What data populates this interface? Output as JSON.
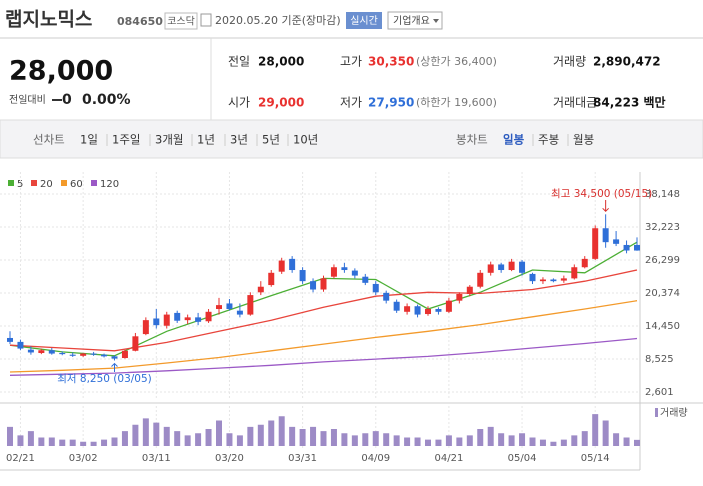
{
  "header": {
    "name": "랩지노믹스",
    "code": "084650",
    "market": "코스닥",
    "date": "2020.05.20 기준(장마감)",
    "realtime": "실시간",
    "company": "기업개요"
  },
  "price": {
    "current": "28,000",
    "change_label": "전일대비",
    "change": "0",
    "change_pct": "0.00%"
  },
  "summary": {
    "prev_label": "전일",
    "prev": "28,000",
    "high_label": "고가",
    "high": "30,350",
    "upper_limit": "(상한가 36,400)",
    "volume_label": "거래량",
    "volume": "2,890,472",
    "open_label": "시가",
    "open": "29,000",
    "low_label": "저가",
    "low": "27,950",
    "lower_limit": "(하한가 19,600)",
    "amount_label": "거래대금",
    "amount": "84,223 백만"
  },
  "tabs": {
    "line_label": "선차트",
    "line": [
      "1일",
      "1주일",
      "3개월",
      "1년",
      "3년",
      "5년",
      "10년"
    ],
    "candle_label": "봉차트",
    "candle": [
      "일봉",
      "주봉",
      "월봉"
    ]
  },
  "chart_data": {
    "type": "candlestick",
    "categories": [
      null,
      "02/21",
      null,
      null,
      null,
      null,
      null,
      "03/02",
      null,
      null,
      null,
      null,
      null,
      null,
      "03/11",
      null,
      null,
      null,
      null,
      null,
      null,
      "03/20",
      null,
      null,
      null,
      null,
      null,
      null,
      "03/31",
      null,
      null,
      null,
      null,
      null,
      null,
      "04/09",
      null,
      null,
      null,
      null,
      null,
      null,
      "04/21",
      null,
      null,
      null,
      null,
      null,
      null,
      "05/04",
      null,
      null,
      null,
      null,
      null,
      null,
      "05/14",
      null,
      null,
      null,
      null
    ],
    "open": [
      12300,
      11600,
      10200,
      9600,
      10100,
      9600,
      9300,
      9100,
      9500,
      9300,
      9000,
      8700,
      10000,
      13000,
      15800,
      14500,
      16800,
      15500,
      16000,
      15300,
      17500,
      18500,
      17200,
      16500,
      20500,
      21800,
      24200,
      26500,
      24500,
      22500,
      21000,
      23300,
      25000,
      24400,
      23300,
      22000,
      20400,
      18800,
      17000,
      18000,
      16600,
      17500,
      17000,
      19000,
      20200,
      21500,
      24000,
      25500,
      24500,
      26000,
      23800,
      22500,
      22800,
      22600,
      23000,
      25000,
      26500,
      32000,
      30000,
      29000,
      29000
    ],
    "high": [
      13500,
      12000,
      10800,
      10400,
      10500,
      9900,
      9700,
      9600,
      9800,
      9500,
      9200,
      10200,
      13200,
      16000,
      17500,
      17000,
      17200,
      16500,
      16800,
      17500,
      19500,
      19300,
      18500,
      20500,
      22500,
      24500,
      26700,
      27000,
      25000,
      23000,
      23500,
      25500,
      25800,
      24800,
      23800,
      22500,
      20800,
      19200,
      18500,
      18300,
      18000,
      17800,
      19500,
      20500,
      21800,
      24500,
      26000,
      25800,
      26500,
      26300,
      24000,
      23200,
      23000,
      23500,
      25500,
      27000,
      32500,
      34500,
      31500,
      29800,
      30350
    ],
    "low": [
      11200,
      10100,
      9300,
      9400,
      9300,
      9200,
      8900,
      8900,
      9100,
      8800,
      8250,
      8600,
      9900,
      12800,
      14000,
      14000,
      15000,
      14800,
      14600,
      15000,
      16500,
      17200,
      16000,
      16300,
      20000,
      21500,
      23800,
      24000,
      22000,
      20500,
      20600,
      23000,
      24000,
      23000,
      21800,
      20000,
      18500,
      16800,
      16500,
      16000,
      16300,
      16500,
      16800,
      18500,
      19800,
      21200,
      23500,
      24000,
      24300,
      23500,
      22000,
      22000,
      22300,
      22200,
      22800,
      24800,
      26300,
      28500,
      28800,
      27500,
      27950
    ],
    "close": [
      11600,
      10400,
      9700,
      10100,
      9500,
      9400,
      9100,
      9500,
      9300,
      9000,
      8600,
      10000,
      12600,
      15500,
      14600,
      16500,
      15400,
      16000,
      15200,
      17000,
      18200,
      17500,
      16500,
      20000,
      21500,
      24000,
      26200,
      24500,
      22500,
      21000,
      23000,
      25000,
      24500,
      23500,
      22200,
      20500,
      19000,
      17200,
      18000,
      16500,
      17500,
      17000,
      19000,
      20200,
      21500,
      24000,
      25500,
      24500,
      26000,
      24000,
      22500,
      22800,
      22500,
      23000,
      25000,
      26500,
      32000,
      29500,
      29200,
      28000,
      28000
    ],
    "volume": [
      9000000,
      5000000,
      7000000,
      4000000,
      4000000,
      3000000,
      3000000,
      2000000,
      2000000,
      3000000,
      4000000,
      7000000,
      10000000,
      13000000,
      11000000,
      9000000,
      7000000,
      5000000,
      6000000,
      8000000,
      12000000,
      6000000,
      5000000,
      9000000,
      10000000,
      12000000,
      14000000,
      9000000,
      8000000,
      9000000,
      7000000,
      8000000,
      6000000,
      5000000,
      6000000,
      7000000,
      6000000,
      5000000,
      4000000,
      4000000,
      3000000,
      3000000,
      5000000,
      4000000,
      5000000,
      8000000,
      9000000,
      6000000,
      5000000,
      6000000,
      4000000,
      3000000,
      2000000,
      3000000,
      5000000,
      7000000,
      15000000,
      12000000,
      6000000,
      4000000,
      2890472
    ],
    "up_color": "#e8312f",
    "down_color": "#2f6fd8",
    "volume_color": "#9d8bc6",
    "volume_name": "거래량",
    "volume_ylim": [
      0,
      16000000
    ],
    "series": [
      {
        "name": "5",
        "color": "#4caf35",
        "x": [
          0,
          5,
          10,
          15,
          20,
          25,
          30,
          35,
          40,
          45,
          50,
          55,
          60
        ],
        "values": [
          11000,
          9800,
          9100,
          13500,
          16700,
          19900,
          23000,
          22800,
          17500,
          20500,
          24500,
          24000,
          29500
        ]
      },
      {
        "name": "20",
        "color": "#e8453c",
        "x": [
          0,
          5,
          10,
          15,
          20,
          25,
          30,
          35,
          40,
          45,
          50,
          55,
          60
        ],
        "values": [
          11000,
          10500,
          10000,
          11500,
          13500,
          15500,
          17800,
          19800,
          20500,
          20300,
          21000,
          22500,
          24500
        ]
      },
      {
        "name": "60",
        "color": "#f39a2b",
        "x": [
          0,
          5,
          10,
          15,
          20,
          25,
          30,
          35,
          40,
          45,
          50,
          55,
          60
        ],
        "values": [
          6200,
          6500,
          6900,
          7800,
          8800,
          10000,
          11200,
          12400,
          13500,
          14700,
          16100,
          17500,
          19000
        ]
      },
      {
        "name": "120",
        "color": "#9b59c6",
        "x": [
          0,
          5,
          10,
          15,
          20,
          25,
          30,
          35,
          40,
          45,
          50,
          55,
          60
        ],
        "values": [
          5600,
          5800,
          6000,
          6400,
          6900,
          7400,
          8000,
          8500,
          9000,
          9700,
          10500,
          11300,
          12200
        ]
      }
    ],
    "ylim": [
      2601,
      38148
    ],
    "yticks": [
      {
        "value": 38148,
        "label": "38,148"
      },
      {
        "value": 32223,
        "label": "32,223"
      },
      {
        "value": 26299,
        "label": "26,299"
      },
      {
        "value": 20374,
        "label": "20,374"
      },
      {
        "value": 14450,
        "label": "14,450"
      },
      {
        "value": 8525,
        "label": "8,525"
      },
      {
        "value": 2601,
        "label": "2,601"
      }
    ],
    "annotations": {
      "high": "최고 34,500 (05/15)",
      "low": "최저 8,250 (03/05)"
    },
    "grid": true
  }
}
